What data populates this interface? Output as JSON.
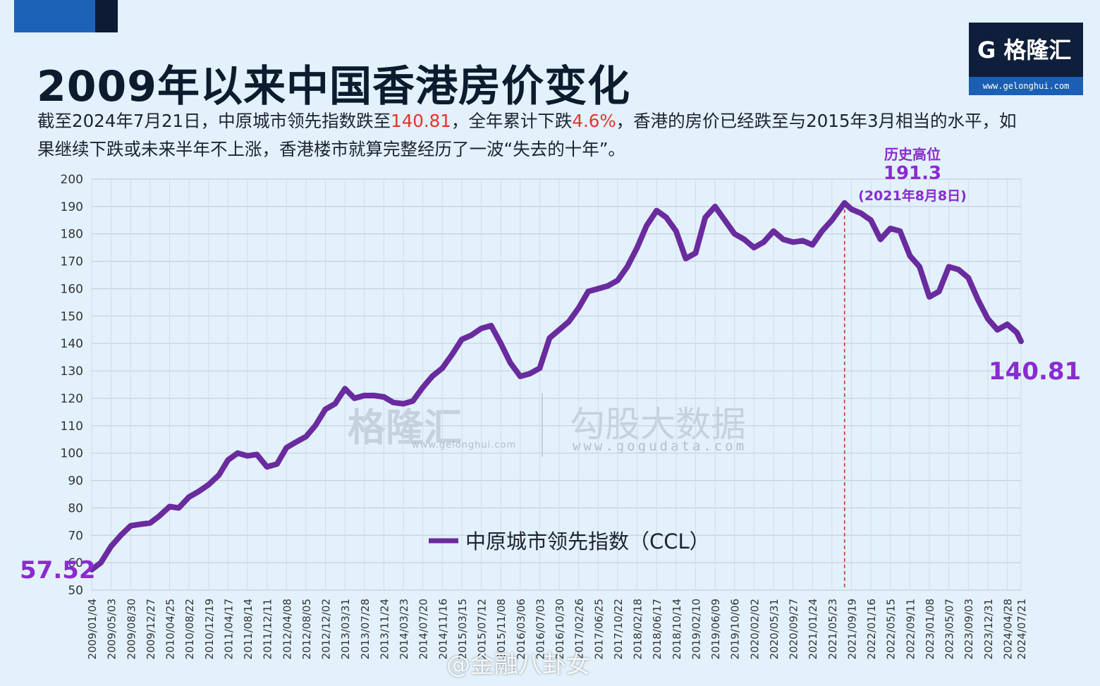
{
  "title": "2009年以来中国香港房价变化",
  "subtitle": {
    "part1": "截至2024年7月21日，中原城市领先指数跌至",
    "highlight1": "140.81",
    "part2": "，全年累计下跌",
    "highlight2": "4.6%",
    "part3": "，香港的房价已经跌至与2015年3月相当的水平，如果继续下跌或未来半年不上涨，香港楼市就算完整经历了一波“失去的十年”。"
  },
  "logo": {
    "name": "格隆汇",
    "letter": "G",
    "url": "www.gelonghui.com"
  },
  "watermarks": {
    "left": "格隆汇",
    "left_url": "www.gelonghui.com",
    "right": "勾股大数据",
    "right_url": "www.gogudata.com"
  },
  "weibo_watermark": "@金融八卦女",
  "annotations": {
    "peak_label": "历史高位",
    "peak_value": "191.3",
    "peak_date": "(2021年8月8日)",
    "start_value": "57.52",
    "end_value": "140.81"
  },
  "colors": {
    "line": "#6a2b9e",
    "accent_red": "#e6332a",
    "annotation": "#8a2bd1",
    "background": "#e2f1fb",
    "marker": "#c0392b"
  },
  "chart_data": {
    "type": "line",
    "legend": "中原城市领先指数（CCL）",
    "legend_position": "bottom-center",
    "grid": true,
    "ylim": [
      50,
      200
    ],
    "yticks": [
      50,
      60,
      70,
      80,
      90,
      100,
      110,
      120,
      130,
      140,
      150,
      160,
      170,
      180,
      190,
      200
    ],
    "x_tick_labels": [
      "2009/01/04",
      "2009/05/03",
      "2009/08/30",
      "2009/12/27",
      "2010/04/25",
      "2010/08/22",
      "2010/12/19",
      "2011/04/17",
      "2011/08/14",
      "2011/12/11",
      "2012/04/08",
      "2012/08/05",
      "2012/12/02",
      "2013/03/31",
      "2013/07/28",
      "2013/11/24",
      "2014/03/23",
      "2014/07/20",
      "2014/11/16",
      "2015/03/15",
      "2015/07/12",
      "2015/11/08",
      "2016/03/06",
      "2016/07/03",
      "2016/10/30",
      "2017/02/26",
      "2017/06/25",
      "2017/10/22",
      "2018/02/18",
      "2018/06/17",
      "2018/10/14",
      "2019/02/10",
      "2019/06/09",
      "2019/10/06",
      "2020/02/02",
      "2020/05/31",
      "2020/09/27",
      "2021/01/24",
      "2021/05/23",
      "2021/09/19",
      "2022/01/16",
      "2022/05/15",
      "2022/09/11",
      "2023/01/08",
      "2023/05/07",
      "2023/09/03",
      "2023/12/31",
      "2024/04/28",
      "2024/07/21"
    ],
    "series": [
      {
        "name": "中原城市领先指数（CCL）",
        "points": [
          [
            "2009/01/04",
            57.5
          ],
          [
            "2009/03/01",
            60
          ],
          [
            "2009/05/03",
            66
          ],
          [
            "2009/07/01",
            70
          ],
          [
            "2009/08/30",
            73.5
          ],
          [
            "2009/10/25",
            74
          ],
          [
            "2009/12/27",
            74.5
          ],
          [
            "2010/02/20",
            77
          ],
          [
            "2010/04/25",
            80.5
          ],
          [
            "2010/06/20",
            80
          ],
          [
            "2010/08/22",
            84
          ],
          [
            "2010/10/20",
            86
          ],
          [
            "2010/12/19",
            88.5
          ],
          [
            "2011/02/20",
            92
          ],
          [
            "2011/04/17",
            97.5
          ],
          [
            "2011/06/15",
            100
          ],
          [
            "2011/08/14",
            99
          ],
          [
            "2011/10/10",
            99.5
          ],
          [
            "2011/12/11",
            95
          ],
          [
            "2012/02/10",
            96
          ],
          [
            "2012/04/08",
            102
          ],
          [
            "2012/06/05",
            104
          ],
          [
            "2012/08/05",
            106
          ],
          [
            "2012/10/01",
            110
          ],
          [
            "2012/12/02",
            116
          ],
          [
            "2013/01/30",
            118
          ],
          [
            "2013/03/31",
            123.5
          ],
          [
            "2013/05/28",
            120
          ],
          [
            "2013/07/28",
            121
          ],
          [
            "2013/09/25",
            121
          ],
          [
            "2013/11/24",
            120.5
          ],
          [
            "2014/01/20",
            118.5
          ],
          [
            "2014/03/23",
            118
          ],
          [
            "2014/05/20",
            119
          ],
          [
            "2014/07/20",
            124
          ],
          [
            "2014/09/15",
            128
          ],
          [
            "2014/11/16",
            131
          ],
          [
            "2015/01/15",
            136
          ],
          [
            "2015/03/15",
            141.5
          ],
          [
            "2015/05/12",
            143
          ],
          [
            "2015/07/12",
            145.5
          ],
          [
            "2015/09/10",
            146.5
          ],
          [
            "2015/11/08",
            140
          ],
          [
            "2016/01/05",
            133
          ],
          [
            "2016/03/06",
            128
          ],
          [
            "2016/05/03",
            129
          ],
          [
            "2016/07/03",
            131
          ],
          [
            "2016/09/01",
            142
          ],
          [
            "2016/10/30",
            145
          ],
          [
            "2016/12/28",
            148
          ],
          [
            "2017/02/26",
            153
          ],
          [
            "2017/04/25",
            159
          ],
          [
            "2017/06/25",
            160
          ],
          [
            "2017/08/22",
            161
          ],
          [
            "2017/10/22",
            163
          ],
          [
            "2017/12/20",
            168
          ],
          [
            "2018/02/18",
            175
          ],
          [
            "2018/04/17",
            183
          ],
          [
            "2018/06/17",
            188.5
          ],
          [
            "2018/08/15",
            186
          ],
          [
            "2018/10/14",
            181
          ],
          [
            "2018/12/12",
            171
          ],
          [
            "2019/02/10",
            173
          ],
          [
            "2019/04/10",
            186
          ],
          [
            "2019/06/09",
            190
          ],
          [
            "2019/08/07",
            185
          ],
          [
            "2019/10/06",
            180
          ],
          [
            "2019/12/04",
            178
          ],
          [
            "2020/02/02",
            175
          ],
          [
            "2020/04/01",
            177
          ],
          [
            "2020/05/31",
            181
          ],
          [
            "2020/07/29",
            178
          ],
          [
            "2020/09/27",
            177
          ],
          [
            "2020/11/25",
            177.5
          ],
          [
            "2021/01/24",
            176
          ],
          [
            "2021/03/23",
            181
          ],
          [
            "2021/05/23",
            185
          ],
          [
            "2021/08/08",
            191.3
          ],
          [
            "2021/09/19",
            189
          ],
          [
            "2021/11/17",
            187.5
          ],
          [
            "2022/01/16",
            185
          ],
          [
            "2022/03/15",
            178
          ],
          [
            "2022/05/15",
            182
          ],
          [
            "2022/07/13",
            181
          ],
          [
            "2022/09/11",
            172
          ],
          [
            "2022/11/09",
            168
          ],
          [
            "2023/01/08",
            157
          ],
          [
            "2023/03/08",
            159
          ],
          [
            "2023/05/07",
            168
          ],
          [
            "2023/07/05",
            167
          ],
          [
            "2023/09/03",
            164
          ],
          [
            "2023/11/01",
            156
          ],
          [
            "2023/12/31",
            149
          ],
          [
            "2024/02/28",
            145
          ],
          [
            "2024/04/28",
            147
          ],
          [
            "2024/06/25",
            144
          ],
          [
            "2024/07/21",
            140.81
          ]
        ]
      }
    ],
    "marker_line": {
      "x": "2021/08/08",
      "style": "dashed"
    }
  }
}
